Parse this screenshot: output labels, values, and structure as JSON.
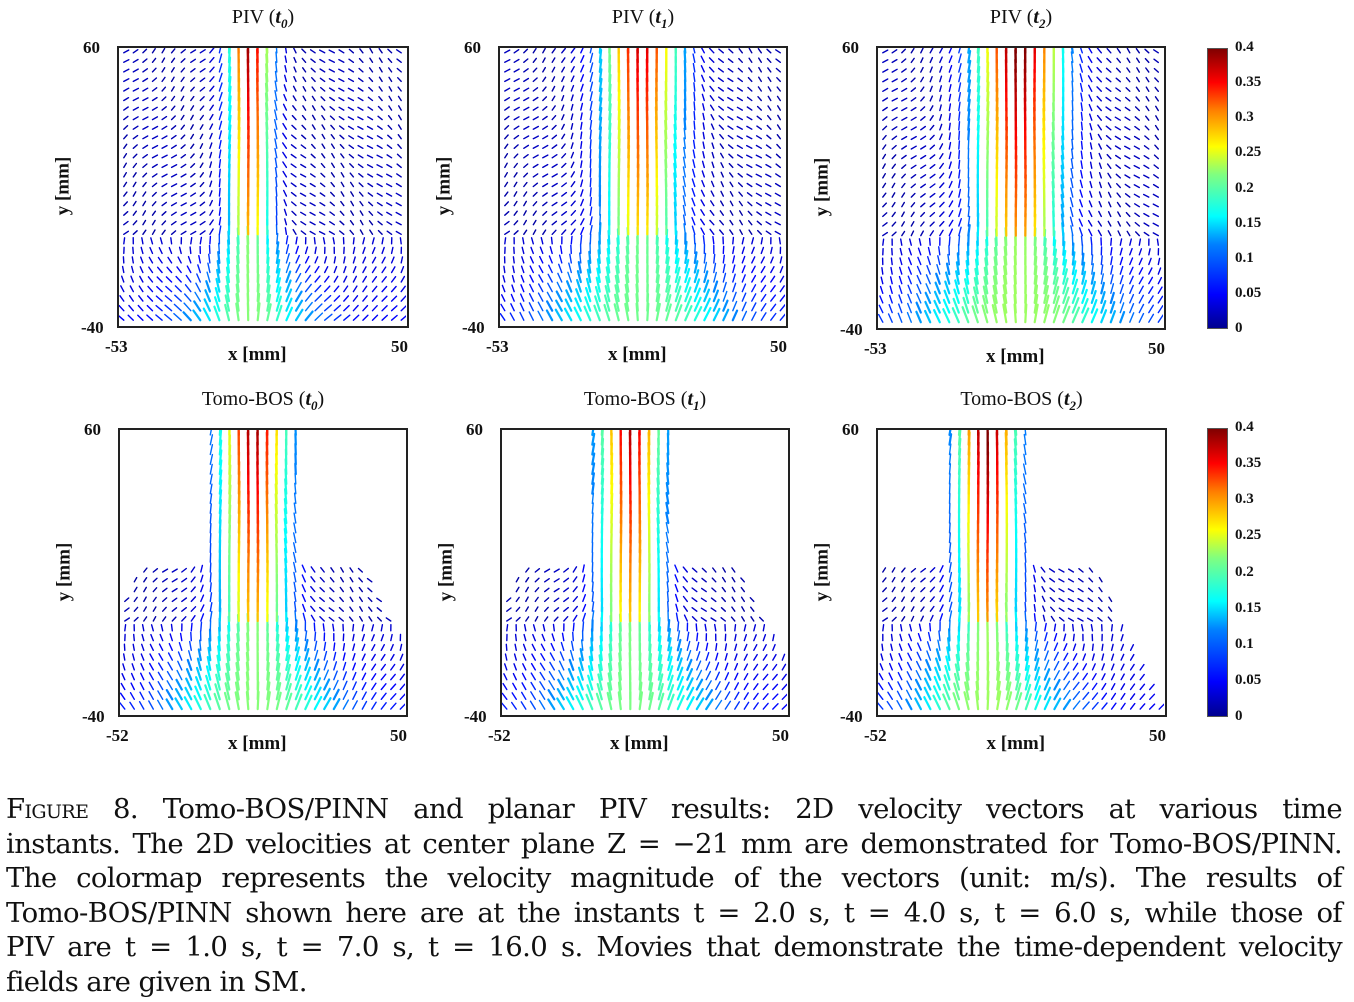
{
  "figure": {
    "colorbar": {
      "ticks": [
        "0.4",
        "0.35",
        "0.3",
        "0.25",
        "0.2",
        "0.15",
        "0.1",
        "0.05",
        "0"
      ],
      "range": [
        0,
        0.4
      ],
      "colormap": "jet"
    },
    "caption": {
      "label": "Figure 8.",
      "lines": [
        "Tomo-BOS/PINN and planar PIV results: 2D velocity vectors at various time",
        "instants. The 2D velocities at center plane Z = −21 mm are demonstrated for Tomo-BOS/PINN.",
        "The colormap represents the velocity magnitude of the vectors (unit: m/s). The results of",
        "Tomo-BOS/PINN shown here are at the instants t = 2.0 s, t = 4.0 s, t = 6.0 s, while those of",
        "PIV are t = 1.0 s, t = 7.0 s, t = 16.0 s. Movies that demonstrate the time-dependent velocity",
        "fields are given in SM."
      ]
    }
  },
  "chart_data": [
    {
      "type": "quiver",
      "title_prefix": "PIV",
      "title_sub": "t0",
      "method": "PIV",
      "instant": "t0",
      "time_s": 1.0,
      "xlabel": "x [mm]",
      "ylabel": "y [mm]",
      "xlim": [
        -53,
        50
      ],
      "ylim": [
        -40,
        60
      ],
      "xticks": [
        "-53",
        "50"
      ],
      "yticks": [
        "60",
        "-40"
      ],
      "jet_center_x_mm": -6,
      "jet_half_width_mm": 10,
      "peak_speed": 0.38,
      "field_coverage": "full",
      "colorbar": false
    },
    {
      "type": "quiver",
      "title_prefix": "PIV",
      "title_sub": "t1",
      "method": "PIV",
      "instant": "t1",
      "time_s": 7.0,
      "xlabel": "x [mm]",
      "ylabel": "y [mm]",
      "xlim": [
        -53,
        50
      ],
      "ylim": [
        -40,
        60
      ],
      "xticks": [
        "-53",
        "50"
      ],
      "yticks": [
        "60",
        "-40"
      ],
      "jet_center_x_mm": -2,
      "jet_half_width_mm": 18,
      "peak_speed": 0.36,
      "field_coverage": "full",
      "colorbar": false
    },
    {
      "type": "quiver",
      "title_prefix": "PIV",
      "title_sub": "t2",
      "method": "PIV",
      "instant": "t2",
      "time_s": 16.0,
      "xlabel": "x [mm]",
      "ylabel": "y [mm]",
      "xlim": [
        -53,
        50
      ],
      "ylim": [
        -40,
        60
      ],
      "xticks": [
        "-53",
        "50"
      ],
      "yticks": [
        "60",
        "-40"
      ],
      "jet_center_x_mm": -2,
      "jet_half_width_mm": 20,
      "peak_speed": 0.4,
      "field_coverage": "full",
      "colorbar": true
    },
    {
      "type": "quiver",
      "title_prefix": "Tomo-BOS",
      "title_sub": "t0",
      "method": "Tomo-BOS/PINN",
      "instant": "t0",
      "time_s": 2.0,
      "xlabel": "x [mm]",
      "ylabel": "y [mm]",
      "xlim": [
        -52,
        50
      ],
      "ylim": [
        -40,
        60
      ],
      "xticks": [
        "-52",
        "50"
      ],
      "yticks": [
        "60",
        "-40"
      ],
      "jet_center_x_mm": -4,
      "jet_half_width_mm": 16,
      "peak_speed": 0.38,
      "field_coverage": "cone",
      "colorbar": false
    },
    {
      "type": "quiver",
      "title_prefix": "Tomo-BOS",
      "title_sub": "t1",
      "method": "Tomo-BOS/PINN",
      "instant": "t1",
      "time_s": 4.0,
      "xlabel": "x [mm]",
      "ylabel": "y [mm]",
      "xlim": [
        -52,
        50
      ],
      "ylim": [
        -40,
        60
      ],
      "xticks": [
        "-52",
        "50"
      ],
      "yticks": [
        "60",
        "-40"
      ],
      "jet_center_x_mm": -6,
      "jet_half_width_mm": 15,
      "peak_speed": 0.37,
      "field_coverage": "cone",
      "colorbar": false
    },
    {
      "type": "quiver",
      "title_prefix": "Tomo-BOS",
      "title_sub": "t2",
      "method": "Tomo-BOS/PINN",
      "instant": "t2",
      "time_s": 6.0,
      "xlabel": "x [mm]",
      "ylabel": "y [mm]",
      "xlim": [
        -52,
        50
      ],
      "ylim": [
        -40,
        60
      ],
      "xticks": [
        "-52",
        "50"
      ],
      "yticks": [
        "60",
        "-40"
      ],
      "jet_center_x_mm": -13,
      "jet_half_width_mm": 14,
      "peak_speed": 0.4,
      "field_coverage": "cone",
      "colorbar": true
    }
  ]
}
